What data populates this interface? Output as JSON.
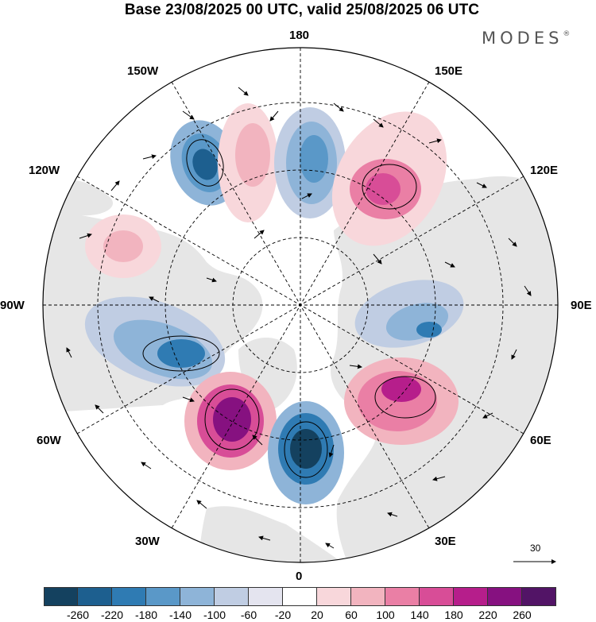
{
  "title": "Base 23/08/2025 00 UTC, valid 25/08/2025 06 UTC",
  "brand": "MODES",
  "brand_mark": "®",
  "longitude_labels": {
    "north": "180",
    "south": "0",
    "east": "90E",
    "west": "90W",
    "ne_upper": "150E",
    "ne_lower": "120E",
    "nw_upper": "150W",
    "nw_lower": "120W",
    "se_upper": "60E",
    "se_lower": "30E",
    "sw_upper": "60W",
    "sw_lower": "30W"
  },
  "reference_vector": "30",
  "colorbar": {
    "levels": [
      "-260",
      "-220",
      "-180",
      "-140",
      "-100",
      "-60",
      "-20",
      "20",
      "60",
      "100",
      "140",
      "180",
      "220",
      "260"
    ],
    "colors": [
      "#14415f",
      "#1d5f8f",
      "#2f7bb3",
      "#5a98c8",
      "#8eb4d8",
      "#c0cde3",
      "#e4e4ef",
      "#ffffff",
      "#f8d7db",
      "#f2b4bf",
      "#ea7fa5",
      "#d84d97",
      "#b61e8b",
      "#861180",
      "#521466"
    ]
  },
  "map_colors": {
    "ocean": "#ffffff",
    "land": "#e6e6e6",
    "coast": "#666666",
    "grid": "#000000"
  },
  "anomalies": [
    {
      "name": "north-pacific-low",
      "sign": "neg",
      "strength": 4
    },
    {
      "name": "north-pacific-high",
      "sign": "pos",
      "strength": 2
    },
    {
      "name": "bering-low",
      "sign": "neg",
      "strength": 3
    },
    {
      "name": "east-siberia-high",
      "sign": "pos",
      "strength": 4
    },
    {
      "name": "alaska-high",
      "sign": "pos",
      "strength": 2
    },
    {
      "name": "canada-low",
      "sign": "neg",
      "strength": 4
    },
    {
      "name": "north-atlantic-high",
      "sign": "pos",
      "strength": 6
    },
    {
      "name": "norwegian-sea-low",
      "sign": "neg",
      "strength": 6
    },
    {
      "name": "west-siberia-high",
      "sign": "pos",
      "strength": 4
    },
    {
      "name": "central-siberia-low",
      "sign": "neg",
      "strength": 4
    }
  ]
}
